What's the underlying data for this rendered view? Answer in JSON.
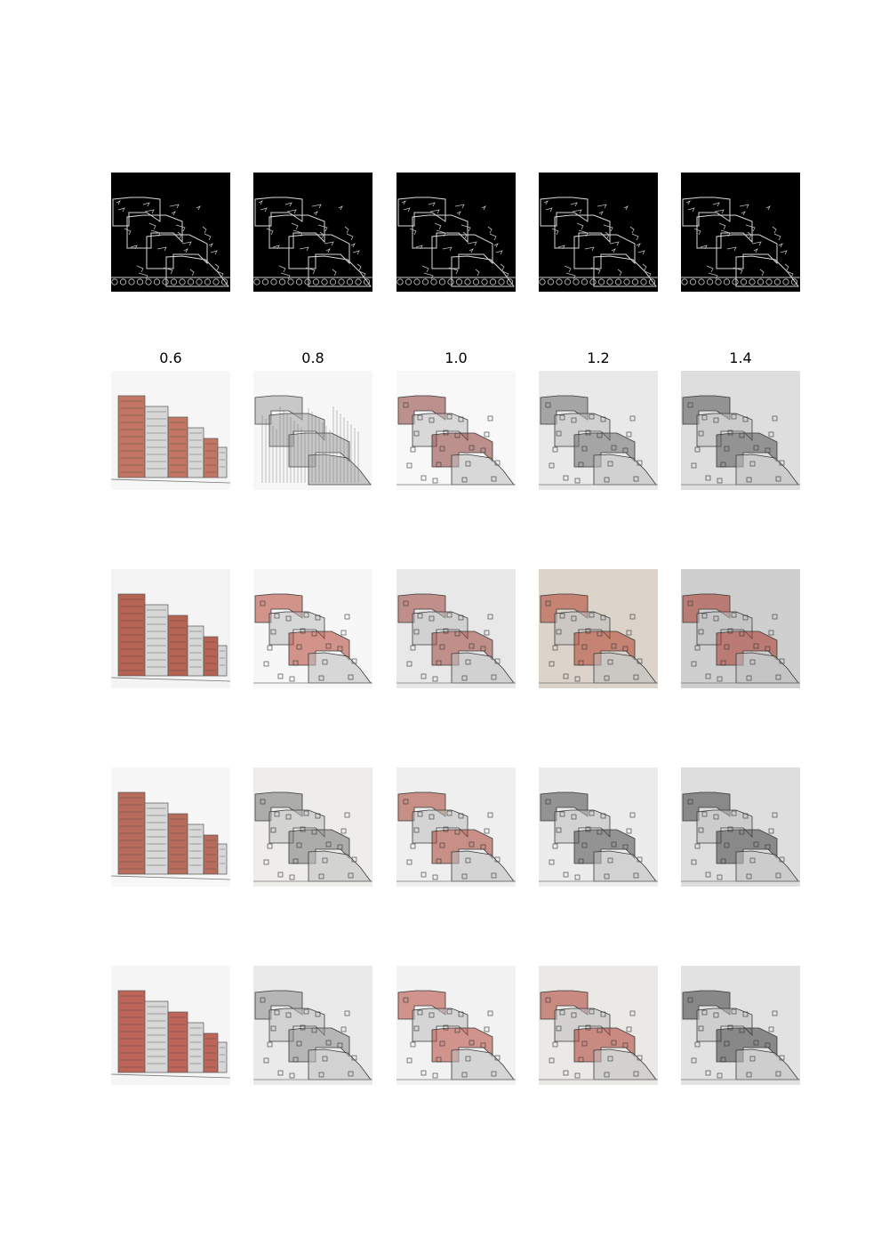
{
  "figure": {
    "column_labels": [
      "0.6",
      "0.8",
      "1.0",
      "1.2",
      "1.4"
    ],
    "edge_row": {
      "count": 5,
      "content": "edge-map"
    },
    "rows": [
      {
        "row": "row-1",
        "tiles": [
          {
            "bg": "#f6f6f6",
            "tone": "#b5563f",
            "style": "tower"
          },
          {
            "bg": "#f7f7f7",
            "tone": "#7a7a7a",
            "style": "wood"
          },
          {
            "bg": "#f8f8f8",
            "tone": "#8b3a33",
            "style": "stepped"
          },
          {
            "bg": "#e9e9e9",
            "tone": "#6e6e6e",
            "style": "stepped"
          },
          {
            "bg": "#dedede",
            "tone": "#555555",
            "style": "stepped"
          }
        ]
      },
      {
        "row": "row-2",
        "tiles": [
          {
            "bg": "#f4f4f4",
            "tone": "#a83e2b",
            "style": "tower"
          },
          {
            "bg": "#f7f7f7",
            "tone": "#b34131",
            "style": "stepped"
          },
          {
            "bg": "#e8e8e8",
            "tone": "#a0453a",
            "style": "stepped"
          },
          {
            "bg": "#dcd3cb",
            "tone": "#b2412c",
            "style": "stepped"
          },
          {
            "bg": "#cfcfcf",
            "tone": "#a9362a",
            "style": "stepped"
          }
        ]
      },
      {
        "row": "row-3",
        "tiles": [
          {
            "bg": "#f7f7f7",
            "tone": "#a84a35",
            "style": "tower"
          },
          {
            "bg": "#eeede9",
            "tone": "#777777",
            "style": "stepped"
          },
          {
            "bg": "#efefef",
            "tone": "#a63f2f",
            "style": "stepped"
          },
          {
            "bg": "#ececec",
            "tone": "#4a4a4a",
            "style": "stepped"
          },
          {
            "bg": "#dedede",
            "tone": "#444444",
            "style": "stepped"
          }
        ]
      },
      {
        "row": "row-4",
        "tiles": [
          {
            "bg": "#f5f5f5",
            "tone": "#b04032",
            "style": "tower"
          },
          {
            "bg": "#eaeaea",
            "tone": "#8a8a8a",
            "style": "stepped"
          },
          {
            "bg": "#f2f2f2",
            "tone": "#b5473a",
            "style": "stepped"
          },
          {
            "bg": "#ebe9e6",
            "tone": "#ad3c2f",
            "style": "stepped"
          },
          {
            "bg": "#e2e2e2",
            "tone": "#3e3e3e",
            "style": "stepped"
          }
        ]
      }
    ]
  }
}
